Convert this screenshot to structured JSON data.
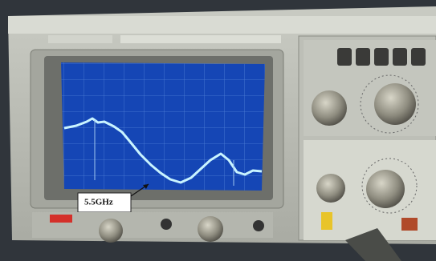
{
  "annotation": {
    "label": "5.5GHz"
  }
}
